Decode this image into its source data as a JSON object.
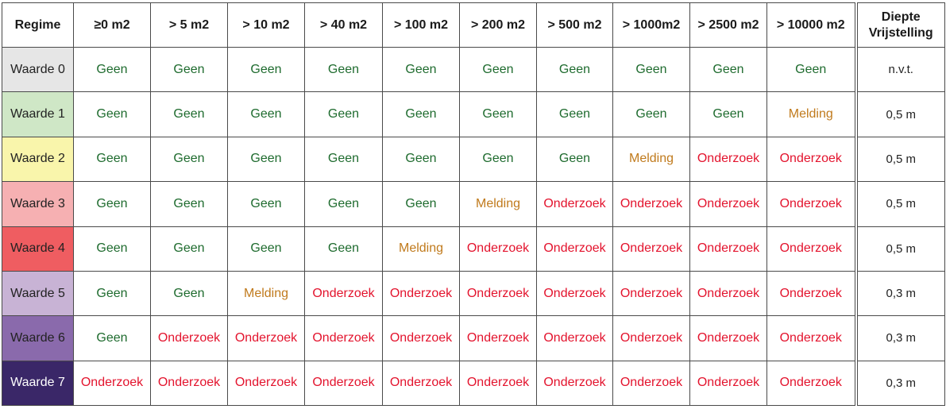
{
  "table": {
    "header": {
      "regime": "Regime",
      "thresholds": [
        "≥0 m2",
        "> 5 m2",
        "> 10 m2",
        "> 40 m2",
        "> 100 m2",
        "> 200 m2",
        "> 500 m2",
        "> 1000m2",
        "> 2500 m2",
        "> 10000 m2"
      ],
      "diepte_line1": "Diepte",
      "diepte_line2": "Vrijstelling"
    },
    "value_colors": {
      "Geen": "#1e6b2e",
      "Melding": "#c07a1c",
      "Onderzoek": "#e3132d"
    },
    "rows": [
      {
        "label": "Waarde 0",
        "color": "#e6e6e6",
        "dark": false,
        "cells": [
          "Geen",
          "Geen",
          "Geen",
          "Geen",
          "Geen",
          "Geen",
          "Geen",
          "Geen",
          "Geen",
          "Geen"
        ],
        "diepte": "n.v.t."
      },
      {
        "label": "Waarde 1",
        "color": "#cfe7c6",
        "dark": false,
        "cells": [
          "Geen",
          "Geen",
          "Geen",
          "Geen",
          "Geen",
          "Geen",
          "Geen",
          "Geen",
          "Geen",
          "Melding"
        ],
        "diepte": "0,5 m"
      },
      {
        "label": "Waarde 2",
        "color": "#f9f5ab",
        "dark": false,
        "cells": [
          "Geen",
          "Geen",
          "Geen",
          "Geen",
          "Geen",
          "Geen",
          "Geen",
          "Melding",
          "Onderzoek",
          "Onderzoek"
        ],
        "diepte": "0,5 m"
      },
      {
        "label": "Waarde 3",
        "color": "#f6b0b2",
        "dark": false,
        "cells": [
          "Geen",
          "Geen",
          "Geen",
          "Geen",
          "Geen",
          "Melding",
          "Onderzoek",
          "Onderzoek",
          "Onderzoek",
          "Onderzoek"
        ],
        "diepte": "0,5 m"
      },
      {
        "label": "Waarde 4",
        "color": "#ef5d61",
        "dark": false,
        "cells": [
          "Geen",
          "Geen",
          "Geen",
          "Geen",
          "Melding",
          "Onderzoek",
          "Onderzoek",
          "Onderzoek",
          "Onderzoek",
          "Onderzoek"
        ],
        "diepte": "0,5 m"
      },
      {
        "label": "Waarde 5",
        "color": "#c8b3d5",
        "dark": false,
        "cells": [
          "Geen",
          "Geen",
          "Melding",
          "Onderzoek",
          "Onderzoek",
          "Onderzoek",
          "Onderzoek",
          "Onderzoek",
          "Onderzoek",
          "Onderzoek"
        ],
        "diepte": "0,3 m"
      },
      {
        "label": "Waarde 6",
        "color": "#8a6aac",
        "dark": false,
        "cells": [
          "Geen",
          "Onderzoek",
          "Onderzoek",
          "Onderzoek",
          "Onderzoek",
          "Onderzoek",
          "Onderzoek",
          "Onderzoek",
          "Onderzoek",
          "Onderzoek"
        ],
        "diepte": "0,3 m"
      },
      {
        "label": "Waarde 7",
        "color": "#3a2768",
        "dark": true,
        "cells": [
          "Onderzoek",
          "Onderzoek",
          "Onderzoek",
          "Onderzoek",
          "Onderzoek",
          "Onderzoek",
          "Onderzoek",
          "Onderzoek",
          "Onderzoek",
          "Onderzoek"
        ],
        "diepte": "0,3 m"
      }
    ]
  }
}
